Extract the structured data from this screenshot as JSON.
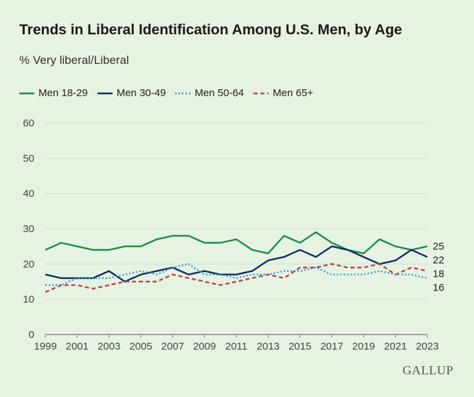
{
  "title": "Trends in Liberal Identification Among U.S. Men, by Age",
  "subtitle": "% Very liberal/Liberal",
  "brand": "GALLUP",
  "chart_data": {
    "type": "line",
    "x": [
      1999,
      2000,
      2001,
      2002,
      2003,
      2004,
      2005,
      2006,
      2007,
      2008,
      2009,
      2010,
      2011,
      2012,
      2013,
      2014,
      2015,
      2016,
      2017,
      2018,
      2019,
      2020,
      2021,
      2022,
      2023
    ],
    "x_ticks": [
      "1999",
      "2001",
      "2003",
      "2005",
      "2007",
      "2009",
      "2011",
      "2013",
      "2015",
      "2017",
      "2019",
      "2021",
      "2023"
    ],
    "y_ticks": [
      "0",
      "10",
      "20",
      "30",
      "40",
      "50",
      "60"
    ],
    "ylim": [
      0,
      60
    ],
    "grid": true,
    "legend_position": "top-left",
    "series": [
      {
        "name": "Men 18-29",
        "color": "#1b8a4b",
        "dash": "solid",
        "end_label": "25",
        "values": [
          24,
          26,
          25,
          24,
          24,
          25,
          25,
          27,
          28,
          28,
          26,
          26,
          27,
          24,
          23,
          28,
          26,
          29,
          26,
          24,
          23,
          27,
          25,
          24,
          25
        ]
      },
      {
        "name": "Men 30-49",
        "color": "#0f2a66",
        "dash": "solid",
        "end_label": "22",
        "values": [
          17,
          16,
          16,
          16,
          18,
          15,
          17,
          18,
          19,
          17,
          18,
          17,
          17,
          18,
          21,
          22,
          24,
          22,
          25,
          24,
          22,
          20,
          21,
          24,
          22
        ]
      },
      {
        "name": "Men 50-64",
        "color": "#2b9bc4",
        "dash": "dotted",
        "end_label": "16",
        "values": [
          14,
          14,
          16,
          16,
          16,
          17,
          18,
          17,
          19,
          20,
          17,
          17,
          16,
          17,
          17,
          18,
          18,
          19,
          17,
          17,
          17,
          18,
          17,
          17,
          16
        ]
      },
      {
        "name": "Men 65+",
        "color": "#b5474f",
        "dash": "dashed",
        "end_label": "18",
        "values": [
          12,
          14,
          14,
          13,
          14,
          15,
          15,
          15,
          17,
          16,
          15,
          14,
          15,
          16,
          17,
          16,
          19,
          19,
          20,
          19,
          19,
          20,
          17,
          19,
          18
        ]
      }
    ]
  }
}
